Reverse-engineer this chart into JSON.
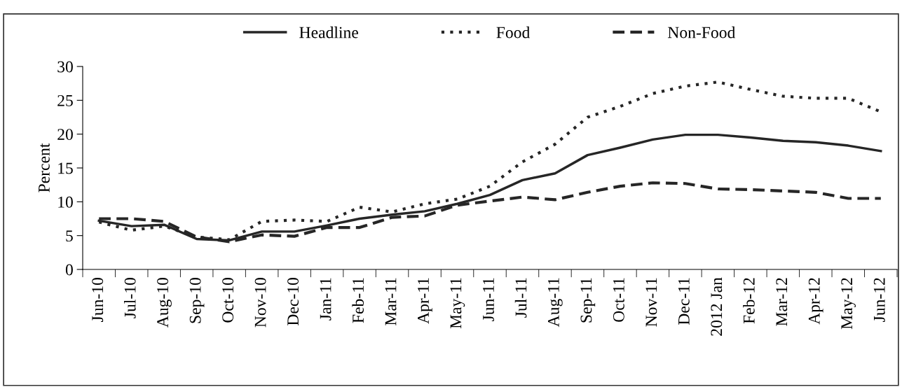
{
  "chart_data": {
    "type": "line",
    "ylabel": "Percent",
    "categories": [
      "Jun-10",
      "Jul-10",
      "Aug-10",
      "Sep-10",
      "Oct-10",
      "Nov-10",
      "Dec-10",
      "Jan-11",
      "Feb-11",
      "Mar-11",
      "Apr-11",
      "May-11",
      "Jun-11",
      "Jul-11",
      "Aug-11",
      "Sep-11",
      "Oct-11",
      "Nov-11",
      "Dec-11",
      "2012 Jan",
      "Feb-12",
      "Mar-12",
      "Apr-12",
      "May-12",
      "Jun-12"
    ],
    "series": [
      {
        "name": "Headline",
        "color": "#262626",
        "line_style": "solid",
        "values": [
          7.2,
          6.4,
          6.6,
          4.5,
          4.3,
          5.6,
          5.6,
          6.5,
          7.5,
          8.1,
          8.6,
          9.7,
          11.0,
          13.2,
          14.2,
          16.9,
          18.0,
          19.2,
          19.9,
          19.9,
          19.5,
          19.0,
          18.8,
          18.3,
          17.5
        ]
      },
      {
        "name": "Food",
        "color": "#262626",
        "line_style": "dotted",
        "values": [
          7.0,
          5.8,
          6.4,
          4.8,
          4.4,
          7.1,
          7.3,
          7.1,
          9.2,
          8.5,
          9.7,
          10.4,
          12.3,
          15.9,
          18.5,
          22.5,
          24.1,
          26.0,
          27.1,
          27.7,
          26.6,
          25.6,
          25.3,
          25.3,
          23.3
        ]
      },
      {
        "name": "Non-Food",
        "color": "#262626",
        "line_style": "dashed",
        "values": [
          7.5,
          7.5,
          7.1,
          4.8,
          4.1,
          5.1,
          4.9,
          6.2,
          6.2,
          7.7,
          7.9,
          9.5,
          10.1,
          10.7,
          10.3,
          11.4,
          12.3,
          12.8,
          12.7,
          11.9,
          11.8,
          11.6,
          11.4,
          10.5,
          10.5
        ]
      }
    ],
    "ylim": [
      0,
      30
    ],
    "yticks": [
      0,
      5,
      10,
      15,
      20,
      25,
      30
    ],
    "grid": false,
    "legend": "top",
    "marker": "none"
  }
}
